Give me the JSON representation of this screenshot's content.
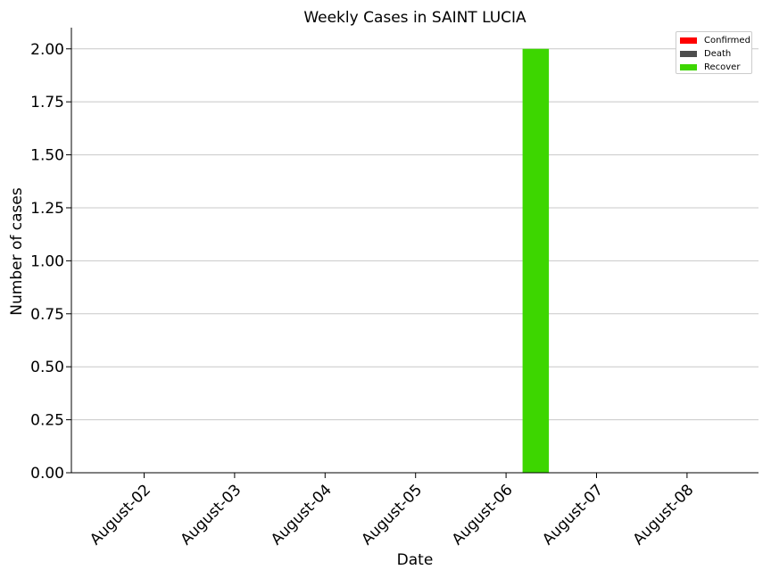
{
  "chart_data": {
    "type": "bar",
    "title": "Weekly Cases in SAINT LUCIA",
    "xlabel": "Date",
    "ylabel": "Number of cases",
    "categories": [
      "August-02",
      "August-03",
      "August-04",
      "August-05",
      "August-06",
      "August-07",
      "August-08"
    ],
    "series": [
      {
        "name": "Confirmed",
        "color": "#ff0000",
        "values": [
          0,
          0,
          0,
          0,
          0,
          0,
          0
        ]
      },
      {
        "name": "Death",
        "color": "#4d4d4d",
        "values": [
          0,
          0,
          0,
          0,
          0,
          0,
          0
        ]
      },
      {
        "name": "Recover",
        "color": "#3dd600",
        "values": [
          0,
          0,
          0,
          0,
          2,
          0,
          0
        ]
      }
    ],
    "ylim": [
      0,
      2.1
    ],
    "yticks": [
      "0.00",
      "0.25",
      "0.50",
      "0.75",
      "1.00",
      "1.25",
      "1.50",
      "1.75",
      "2.00"
    ],
    "grid": "horizontal",
    "legend_position": "top-right"
  }
}
